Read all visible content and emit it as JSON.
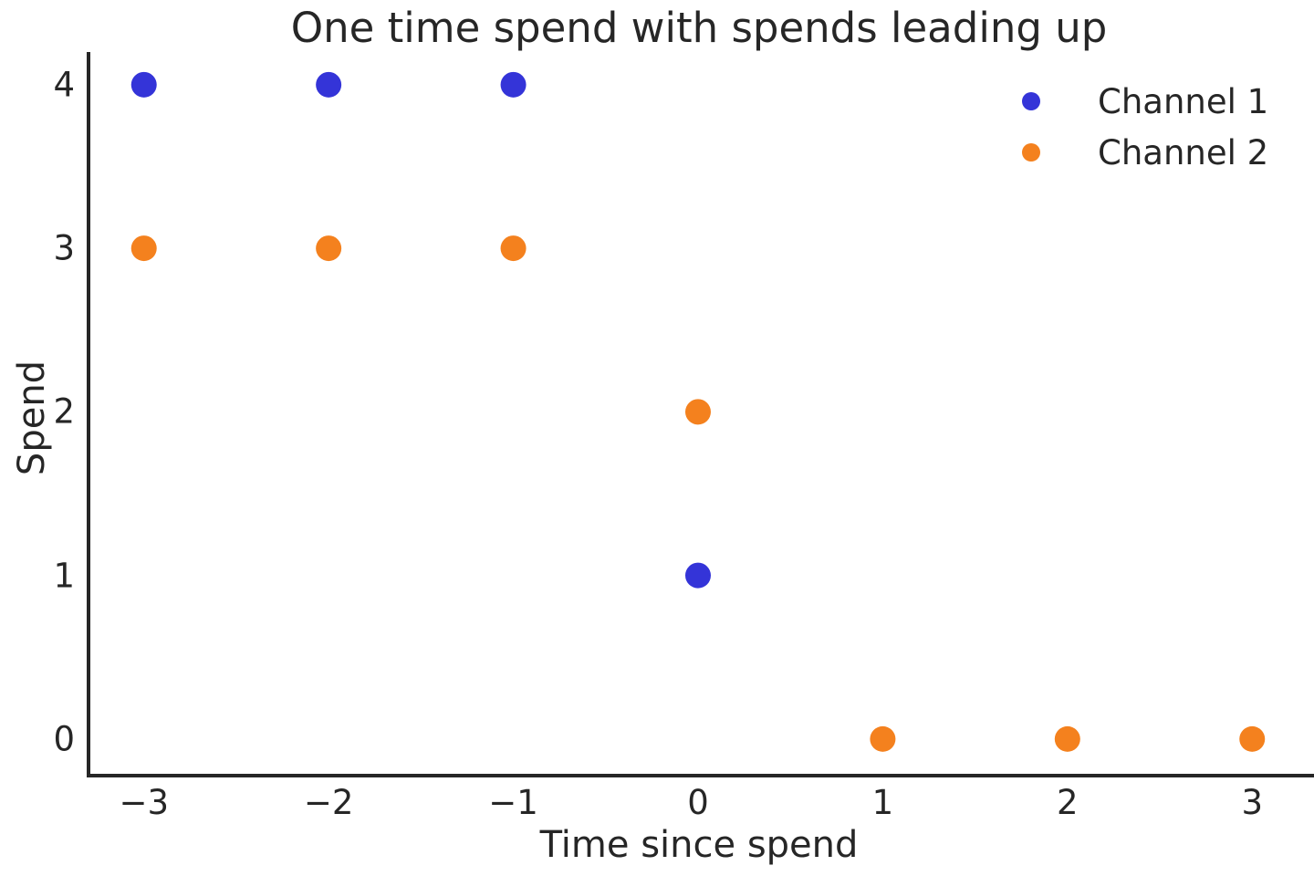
{
  "chart_data": {
    "type": "scatter",
    "title": "One time spend with spends leading up",
    "xlabel": "Time since spend",
    "ylabel": "Spend",
    "xlim": [
      -3.3,
      3.315
    ],
    "ylim": [
      -0.235,
      4.2
    ],
    "grid": false,
    "legend_position": "upper right",
    "xticks": [
      {
        "value": -3,
        "label": "−3"
      },
      {
        "value": -2,
        "label": "−2"
      },
      {
        "value": -1,
        "label": "−1"
      },
      {
        "value": 0,
        "label": "0"
      },
      {
        "value": 1,
        "label": "1"
      },
      {
        "value": 2,
        "label": "2"
      },
      {
        "value": 3,
        "label": "3"
      }
    ],
    "yticks": [
      {
        "value": 0,
        "label": "0"
      },
      {
        "value": 1,
        "label": "1"
      },
      {
        "value": 2,
        "label": "2"
      },
      {
        "value": 3,
        "label": "3"
      },
      {
        "value": 4,
        "label": "4"
      }
    ],
    "series": [
      {
        "name": "Channel 1",
        "color": "#3434d8",
        "marker": "circle",
        "points": [
          {
            "x": -3,
            "y": 4
          },
          {
            "x": -2,
            "y": 4
          },
          {
            "x": -1,
            "y": 4
          },
          {
            "x": 0,
            "y": 1
          }
        ]
      },
      {
        "name": "Channel 2",
        "color": "#f4811e",
        "marker": "circle",
        "points": [
          {
            "x": -3,
            "y": 3
          },
          {
            "x": -2,
            "y": 3
          },
          {
            "x": -1,
            "y": 3
          },
          {
            "x": 0,
            "y": 2
          },
          {
            "x": 1,
            "y": 0
          },
          {
            "x": 2,
            "y": 0
          },
          {
            "x": 3,
            "y": 0
          }
        ]
      }
    ],
    "style": {
      "background": "#ffffff",
      "text_color": "#262626",
      "spine_color": "#262626",
      "marker_radius": 14,
      "legend_marker_diameter": 20
    }
  }
}
